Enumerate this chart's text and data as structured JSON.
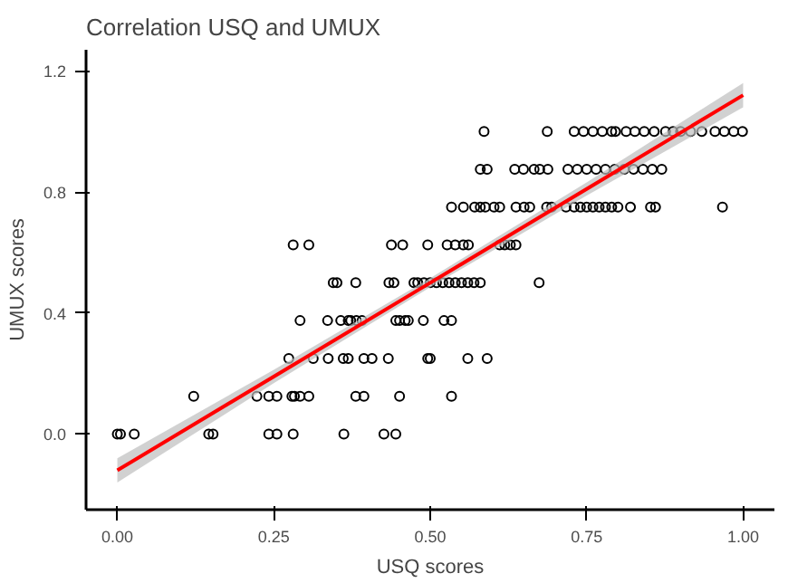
{
  "chart_data": {
    "type": "scatter",
    "title": "Correlation USQ and UMUX",
    "xlabel": "USQ scores",
    "ylabel": "UMUX scores",
    "xlim": [
      -0.05,
      1.05
    ],
    "ylim": [
      -0.25,
      1.27
    ],
    "xticks": [
      {
        "value": 0,
        "label": "0.00"
      },
      {
        "value": 0.25,
        "label": "0.25"
      },
      {
        "value": 0.5,
        "label": "0.50"
      },
      {
        "value": 0.75,
        "label": "0.75"
      },
      {
        "value": 1,
        "label": "1.00"
      }
    ],
    "yticks": [
      {
        "value": 0,
        "label": "0.0"
      },
      {
        "value": 0.4,
        "label": "0.4"
      },
      {
        "value": 0.8,
        "label": "0.8"
      },
      {
        "value": 1.2,
        "label": "1.2"
      }
    ],
    "grid": false,
    "marker": "circle",
    "series": [
      {
        "color": "#000000",
        "x": [
          0.0,
          0.005,
          0.027,
          0.146,
          0.153,
          0.242,
          0.255,
          0.281,
          0.362,
          0.426,
          0.445,
          0.122,
          0.223,
          0.242,
          0.255,
          0.279,
          0.283,
          0.292,
          0.306,
          0.381,
          0.394,
          0.451,
          0.534,
          0.274,
          0.313,
          0.337,
          0.361,
          0.369,
          0.394,
          0.407,
          0.433,
          0.496,
          0.5,
          0.56,
          0.591,
          0.292,
          0.336,
          0.357,
          0.369,
          0.373,
          0.382,
          0.391,
          0.445,
          0.451,
          0.46,
          0.465,
          0.489,
          0.522,
          0.534,
          0.345,
          0.351,
          0.381,
          0.434,
          0.442,
          0.474,
          0.48,
          0.49,
          0.5,
          0.51,
          0.52,
          0.53,
          0.54,
          0.55,
          0.56,
          0.57,
          0.58,
          0.674,
          0.281,
          0.306,
          0.438,
          0.456,
          0.496,
          0.527,
          0.54,
          0.553,
          0.561,
          0.611,
          0.619,
          0.628,
          0.637,
          0.534,
          0.553,
          0.571,
          0.58,
          0.588,
          0.602,
          0.611,
          0.637,
          0.65,
          0.659,
          0.686,
          0.694,
          0.717,
          0.73,
          0.74,
          0.75,
          0.76,
          0.77,
          0.78,
          0.79,
          0.8,
          0.82,
          0.852,
          0.86,
          0.967,
          0.58,
          0.591,
          0.635,
          0.649,
          0.666,
          0.675,
          0.688,
          0.72,
          0.735,
          0.75,
          0.765,
          0.78,
          0.795,
          0.81,
          0.825,
          0.84,
          0.855,
          0.87,
          0.586,
          0.687,
          0.73,
          0.745,
          0.76,
          0.775,
          0.79,
          0.796,
          0.813,
          0.827,
          0.842,
          0.858,
          0.876,
          0.888,
          0.9,
          0.916,
          0.934,
          0.955,
          0.97,
          0.985,
          0.999
        ],
        "values": [
          0,
          0,
          0,
          0,
          0,
          0,
          0,
          0,
          0,
          0,
          0,
          0.125,
          0.125,
          0.125,
          0.125,
          0.125,
          0.125,
          0.125,
          0.125,
          0.125,
          0.125,
          0.125,
          0.125,
          0.25,
          0.25,
          0.25,
          0.25,
          0.25,
          0.25,
          0.25,
          0.25,
          0.25,
          0.25,
          0.25,
          0.25,
          0.375,
          0.375,
          0.375,
          0.375,
          0.375,
          0.375,
          0.375,
          0.375,
          0.375,
          0.375,
          0.375,
          0.375,
          0.375,
          0.375,
          0.5,
          0.5,
          0.5,
          0.5,
          0.5,
          0.5,
          0.5,
          0.5,
          0.5,
          0.5,
          0.5,
          0.5,
          0.5,
          0.5,
          0.5,
          0.5,
          0.5,
          0.5,
          0.625,
          0.625,
          0.625,
          0.625,
          0.625,
          0.625,
          0.625,
          0.625,
          0.625,
          0.625,
          0.625,
          0.625,
          0.625,
          0.75,
          0.75,
          0.75,
          0.75,
          0.75,
          0.75,
          0.75,
          0.75,
          0.75,
          0.75,
          0.75,
          0.75,
          0.75,
          0.75,
          0.75,
          0.75,
          0.75,
          0.75,
          0.75,
          0.75,
          0.75,
          0.75,
          0.75,
          0.75,
          0.75,
          0.875,
          0.875,
          0.875,
          0.875,
          0.875,
          0.875,
          0.875,
          0.875,
          0.875,
          0.875,
          0.875,
          0.875,
          0.875,
          0.875,
          0.875,
          0.875,
          0.875,
          0.875,
          1,
          1,
          1,
          1,
          1,
          1,
          1,
          1,
          1,
          1,
          1,
          1,
          1,
          1,
          1,
          1,
          1,
          1,
          1,
          1,
          1
        ]
      },
      {
        "type": "line",
        "color": "#ff0000",
        "marker": "none",
        "x": [
          0,
          0.25,
          0.5,
          0.75,
          1
        ],
        "values": [
          -0.12,
          0.19,
          0.5,
          0.81,
          1.12
        ],
        "lower": [
          -0.16,
          0.168,
          0.485,
          0.788,
          1.08
        ],
        "upper": [
          -0.08,
          0.212,
          0.515,
          0.832,
          1.16
        ]
      }
    ]
  }
}
